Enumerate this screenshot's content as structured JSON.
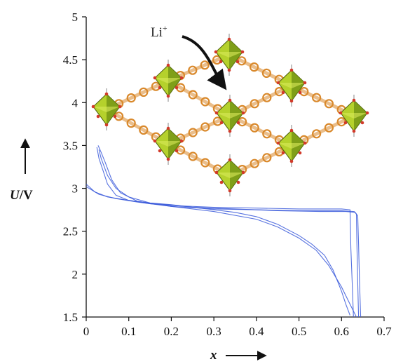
{
  "chart_data": {
    "type": "line",
    "title": "",
    "x_axis": {
      "label": "x",
      "range": [
        0,
        0.7
      ],
      "ticks": [
        "0",
        "0.1",
        "0.2",
        "0.3",
        "0.4",
        "0.5",
        "0.6",
        "0.7"
      ],
      "tick_values": [
        0,
        0.1,
        0.2,
        0.3,
        0.4,
        0.5,
        0.6,
        0.7
      ]
    },
    "y_axis": {
      "label_var": "U",
      "label_unit": "/V",
      "range": [
        1.5,
        5
      ],
      "ticks": [
        "1.5",
        "2",
        "2.5",
        "3",
        "3.5",
        "4",
        "4.5",
        "5"
      ],
      "tick_values": [
        1.5,
        2,
        2.5,
        3,
        3.5,
        4,
        4.5,
        5
      ]
    },
    "grid": false,
    "legend": "none",
    "series_color": "#3b5bdb",
    "series": [
      {
        "x": [
          0,
          0.02,
          0.05,
          0.1,
          0.15,
          0.2,
          0.25,
          0.3,
          0.35,
          0.4,
          0.45,
          0.5,
          0.53,
          0.56,
          0.58,
          0.6,
          0.61,
          0.62
        ],
        "y": [
          3.05,
          2.96,
          2.9,
          2.86,
          2.83,
          2.81,
          2.78,
          2.75,
          2.72,
          2.67,
          2.58,
          2.45,
          2.35,
          2.22,
          2.05,
          1.8,
          1.65,
          1.52
        ]
      },
      {
        "x": [
          0,
          0.03,
          0.07,
          0.12,
          0.2,
          0.3,
          0.4,
          0.45,
          0.5,
          0.54,
          0.57,
          0.6,
          0.62,
          0.635
        ],
        "y": [
          3.02,
          2.93,
          2.88,
          2.84,
          2.79,
          2.73,
          2.64,
          2.55,
          2.42,
          2.28,
          2.1,
          1.85,
          1.65,
          1.5
        ]
      },
      {
        "x": [
          0.628,
          0.625,
          0.622,
          0.62,
          0.6,
          0.55,
          0.5,
          0.4,
          0.3,
          0.2,
          0.15,
          0.1,
          0.07,
          0.05,
          0.04,
          0.03,
          0.025
        ],
        "y": [
          1.5,
          1.9,
          2.3,
          2.75,
          2.76,
          2.76,
          2.76,
          2.77,
          2.78,
          2.8,
          2.82,
          2.86,
          2.92,
          3.05,
          3.2,
          3.35,
          3.48
        ]
      },
      {
        "x": [
          0.64,
          0.638,
          0.636,
          0.635,
          0.63,
          0.6,
          0.5,
          0.4,
          0.3,
          0.2,
          0.12,
          0.08,
          0.06,
          0.045,
          0.035,
          0.028
        ],
        "y": [
          1.5,
          1.9,
          2.4,
          2.7,
          2.73,
          2.74,
          2.74,
          2.75,
          2.76,
          2.79,
          2.85,
          2.95,
          3.1,
          3.3,
          3.42,
          3.5
        ]
      },
      {
        "x": [
          0.645,
          0.642,
          0.64,
          0.638,
          0.632,
          0.61,
          0.55,
          0.45,
          0.35,
          0.25,
          0.15,
          0.1,
          0.07,
          0.05,
          0.035,
          0.03
        ],
        "y": [
          1.5,
          1.95,
          2.35,
          2.68,
          2.72,
          2.73,
          2.73,
          2.74,
          2.76,
          2.78,
          2.83,
          2.9,
          3.0,
          3.15,
          3.35,
          3.45
        ]
      }
    ],
    "annotations": [
      {
        "text_main": "Li",
        "text_sup": "+"
      }
    ],
    "inset": {
      "description_icon": "mof-framework-illustration",
      "octahedron_color": "#b5d12c",
      "octahedron_shade": "#6e8e12",
      "linker_color": "#d9892c",
      "oxygen_color": "#d23a2a"
    }
  }
}
